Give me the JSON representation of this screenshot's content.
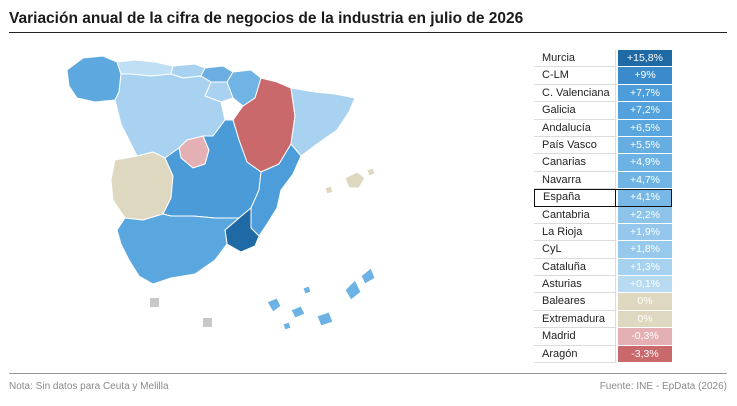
{
  "header": {
    "title": "Variación anual de la cifra de negocios de la industria en julio de 2026"
  },
  "footer": {
    "note": "Nota: Sin datos para Ceuta y Melilla",
    "source": "Fuente: INE - EpData (2026)"
  },
  "colors": {
    "murcia": "#1f6aa5",
    "clm": "#4a9bd8",
    "mid_blue": "#5ea8e0",
    "light_blue": "#a8d2f0",
    "pale_blue": "#bfdff4",
    "zero": "#ddd8bf",
    "madrid": "#e5b0b4",
    "aragon": "#c9696b"
  },
  "table": {
    "rows": [
      {
        "region": "Murcia",
        "value": "+15,8%",
        "color": "#1f6aa5"
      },
      {
        "region": "C-LM",
        "value": "+9%",
        "color": "#3b8bcc"
      },
      {
        "region": "C. Valenciana",
        "value": "+7,7%",
        "color": "#4c9dda"
      },
      {
        "region": "Galicia",
        "value": "+7,2%",
        "color": "#53a2dd"
      },
      {
        "region": "Andalucía",
        "value": "+6,5%",
        "color": "#5aa7df"
      },
      {
        "region": "País Vasco",
        "value": "+5,5%",
        "color": "#66ade2"
      },
      {
        "region": "Canarias",
        "value": "+4,9%",
        "color": "#6db2e4"
      },
      {
        "region": "Navarra",
        "value": "+4,7%",
        "color": "#70b4e5"
      },
      {
        "region": "España",
        "value": "+4,1%",
        "color": "#78b8e6",
        "highlight": true
      },
      {
        "region": "Cantabria",
        "value": "+2,2%",
        "color": "#8fc4ea"
      },
      {
        "region": "La Rioja",
        "value": "+1,9%",
        "color": "#94c7eb"
      },
      {
        "region": "CyL",
        "value": "+1,8%",
        "color": "#97c9ec"
      },
      {
        "region": "Cataluña",
        "value": "+1,3%",
        "color": "#a6d1ef"
      },
      {
        "region": "Asturias",
        "value": "+0,1%",
        "color": "#b8dbf2"
      },
      {
        "region": "Baleares",
        "value": "0%",
        "color": "#ddd8bf"
      },
      {
        "region": "Extremadura",
        "value": "0%",
        "color": "#ddd8bf"
      },
      {
        "region": "Madrid",
        "value": "-0,3%",
        "color": "#e5b0b4"
      },
      {
        "region": "Aragón",
        "value": "-3,3%",
        "color": "#c9696b"
      }
    ]
  }
}
